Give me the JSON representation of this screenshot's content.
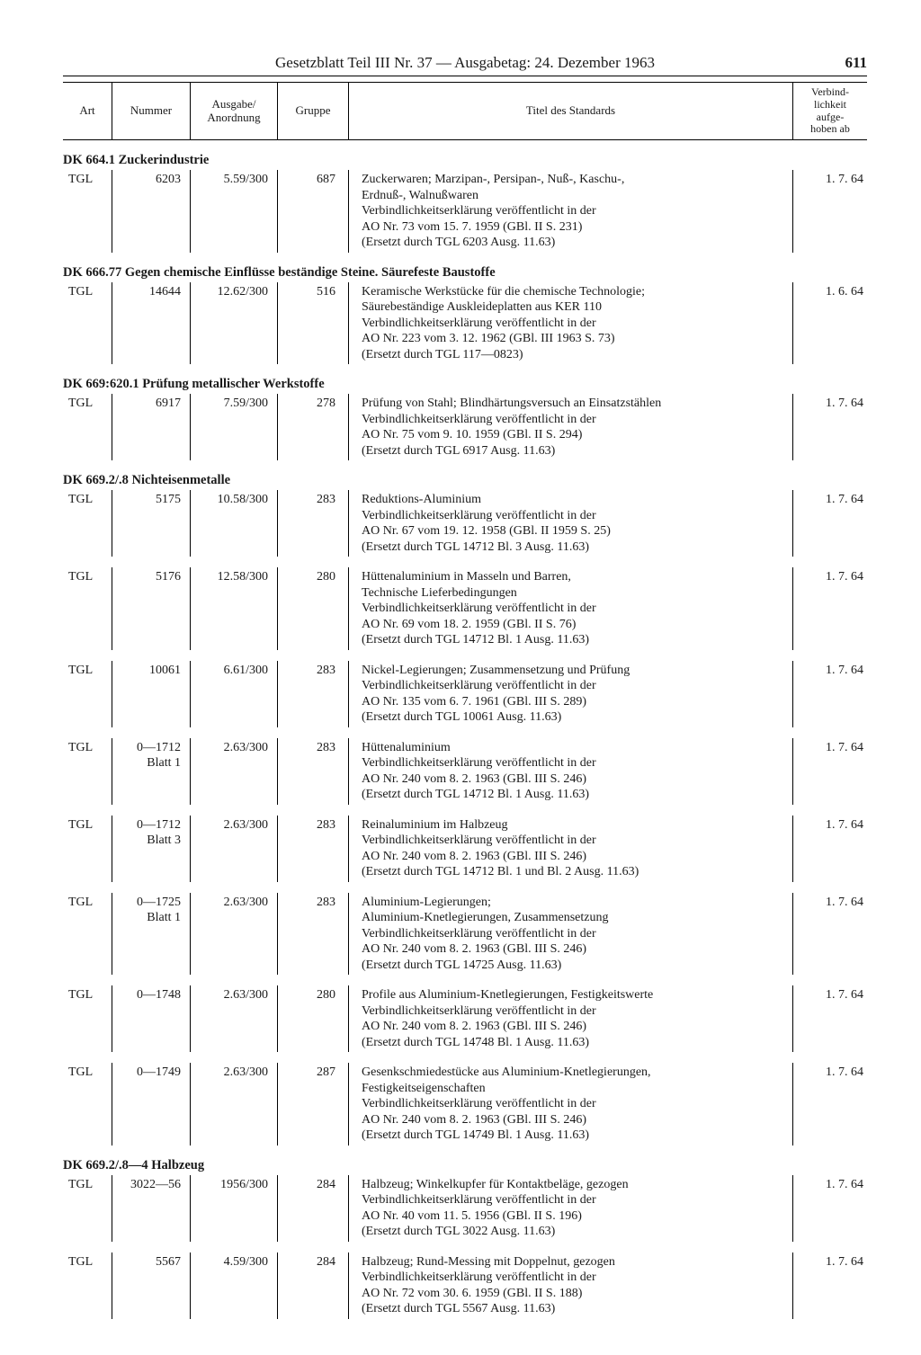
{
  "page": {
    "header_title": "Gesetzblatt Teil III Nr. 37 — Ausgabetag: 24. Dezember 1963",
    "page_number": "611"
  },
  "columns": {
    "art": "Art",
    "nummer": "Nummer",
    "ausgabe": "Ausgabe/\nAnordnung",
    "gruppe": "Gruppe",
    "titel": "Titel des Standards",
    "verbind": "Verbind-\nlichkeit\naufge-\nhoben ab"
  },
  "sections": [
    {
      "heading": "DK 664.1 Zuckerindustrie",
      "rows": [
        {
          "art": "TGL",
          "nummer": "6203",
          "ausgabe": "5.59/300",
          "gruppe": "687",
          "titel": [
            "Zuckerwaren; Marzipan-, Persipan-, Nuß-, Kaschu-,",
            "Erdnuß-, Walnußwaren",
            "Verbindlichkeitserklärung veröffentlicht in der",
            "AO Nr. 73 vom 15. 7. 1959 (GBl. II S. 231)",
            "(Ersetzt durch TGL 6203 Ausg. 11.63)"
          ],
          "verb": "1. 7. 64"
        }
      ]
    },
    {
      "heading": "DK 666.77 Gegen chemische Einflüsse beständige Steine. Säurefeste Baustoffe",
      "rows": [
        {
          "art": "TGL",
          "nummer": "14644",
          "ausgabe": "12.62/300",
          "gruppe": "516",
          "titel": [
            "Keramische Werkstücke für die chemische Technologie;",
            "Säurebeständige Auskleideplatten aus KER 110",
            "Verbindlichkeitserklärung veröffentlicht in der",
            "AO Nr. 223 vom 3. 12. 1962 (GBl. III 1963 S. 73)",
            "(Ersetzt durch TGL 117—0823)"
          ],
          "verb": "1. 6. 64"
        }
      ]
    },
    {
      "heading": "DK 669:620.1 Prüfung metallischer Werkstoffe",
      "rows": [
        {
          "art": "TGL",
          "nummer": "6917",
          "ausgabe": "7.59/300",
          "gruppe": "278",
          "titel": [
            "Prüfung von Stahl; Blindhärtungsversuch an Einsatzstählen",
            "Verbindlichkeitserklärung veröffentlicht in der",
            "AO Nr. 75 vom 9. 10. 1959 (GBl. II S. 294)",
            "(Ersetzt durch TGL 6917 Ausg. 11.63)"
          ],
          "verb": "1. 7. 64"
        }
      ]
    },
    {
      "heading": "DK 669.2/.8 Nichteisenmetalle",
      "rows": [
        {
          "art": "TGL",
          "nummer": "5175",
          "ausgabe": "10.58/300",
          "gruppe": "283",
          "titel": [
            "Reduktions-Aluminium",
            "Verbindlichkeitserklärung veröffentlicht in der",
            "AO Nr. 67 vom 19. 12. 1958 (GBl. II 1959 S. 25)",
            "(Ersetzt durch TGL 14712 Bl. 3 Ausg. 11.63)"
          ],
          "verb": "1. 7. 64"
        },
        {
          "art": "TGL",
          "nummer": "5176",
          "ausgabe": "12.58/300",
          "gruppe": "280",
          "titel": [
            "Hüttenaluminium in Masseln und Barren,",
            "Technische Lieferbedingungen",
            "Verbindlichkeitserklärung veröffentlicht in der",
            "AO Nr. 69 vom 18. 2. 1959 (GBl. II S. 76)",
            "(Ersetzt durch TGL 14712 Bl. 1 Ausg. 11.63)"
          ],
          "verb": "1. 7. 64"
        },
        {
          "art": "TGL",
          "nummer": "10061",
          "ausgabe": "6.61/300",
          "gruppe": "283",
          "titel": [
            "Nickel-Legierungen; Zusammensetzung und Prüfung",
            "Verbindlichkeitserklärung veröffentlicht in der",
            "AO Nr. 135 vom 6. 7. 1961 (GBl. III S. 289)",
            "(Ersetzt durch TGL 10061 Ausg. 11.63)"
          ],
          "verb": "1. 7. 64"
        },
        {
          "art": "TGL",
          "nummer": "0—1712\nBlatt 1",
          "ausgabe": "2.63/300",
          "gruppe": "283",
          "titel": [
            "Hüttenaluminium",
            "Verbindlichkeitserklärung veröffentlicht in der",
            "AO Nr. 240 vom 8. 2. 1963 (GBl. III S. 246)",
            "(Ersetzt durch TGL 14712 Bl. 1 Ausg. 11.63)"
          ],
          "verb": "1. 7. 64"
        },
        {
          "art": "TGL",
          "nummer": "0—1712\nBlatt 3",
          "ausgabe": "2.63/300",
          "gruppe": "283",
          "titel": [
            "Reinaluminium im Halbzeug",
            "Verbindlichkeitserklärung veröffentlicht in der",
            "AO Nr. 240 vom 8. 2. 1963 (GBl. III S. 246)",
            "(Ersetzt durch TGL 14712 Bl. 1 und Bl. 2 Ausg. 11.63)"
          ],
          "verb": "1. 7. 64"
        },
        {
          "art": "TGL",
          "nummer": "0—1725\nBlatt 1",
          "ausgabe": "2.63/300",
          "gruppe": "283",
          "titel": [
            "Aluminium-Legierungen;",
            "Aluminium-Knetlegierungen, Zusammensetzung",
            "Verbindlichkeitserklärung veröffentlicht in der",
            "AO Nr. 240 vom 8. 2. 1963 (GBl. III S. 246)",
            "(Ersetzt durch TGL 14725 Ausg. 11.63)"
          ],
          "verb": "1. 7. 64"
        },
        {
          "art": "TGL",
          "nummer": "0—1748",
          "ausgabe": "2.63/300",
          "gruppe": "280",
          "titel": [
            "Profile aus Aluminium-Knetlegierungen, Festigkeitswerte",
            "Verbindlichkeitserklärung veröffentlicht in der",
            "AO Nr. 240 vom 8. 2. 1963 (GBl. III S. 246)",
            "(Ersetzt durch TGL 14748 Bl. 1 Ausg. 11.63)"
          ],
          "verb": "1. 7. 64"
        },
        {
          "art": "TGL",
          "nummer": "0—1749",
          "ausgabe": "2.63/300",
          "gruppe": "287",
          "titel": [
            "Gesenkschmiedestücke aus Aluminium-Knetlegierungen,",
            "Festigkeitseigenschaften",
            "Verbindlichkeitserklärung veröffentlicht in der",
            "AO Nr. 240 vom 8. 2. 1963 (GBl. III S. 246)",
            "(Ersetzt durch TGL 14749 Bl. 1 Ausg. 11.63)"
          ],
          "verb": "1. 7. 64"
        }
      ]
    },
    {
      "heading": "DK 669.2/.8—4 Halbzeug",
      "rows": [
        {
          "art": "TGL",
          "nummer": "3022—56",
          "ausgabe": "1956/300",
          "gruppe": "284",
          "titel": [
            "Halbzeug; Winkelkupfer für Kontaktbeläge, gezogen",
            "Verbindlichkeitserklärung veröffentlicht in der",
            "AO Nr. 40 vom 11. 5. 1956 (GBl. II S. 196)",
            "(Ersetzt durch TGL 3022 Ausg. 11.63)"
          ],
          "verb": "1. 7. 64"
        },
        {
          "art": "TGL",
          "nummer": "5567",
          "ausgabe": "4.59/300",
          "gruppe": "284",
          "titel": [
            "Halbzeug; Rund-Messing mit Doppelnut, gezogen",
            "Verbindlichkeitserklärung veröffentlicht in der",
            "AO Nr. 72 vom 30. 6. 1959 (GBl. II S. 188)",
            "(Ersetzt durch TGL 5567 Ausg. 11.63)"
          ],
          "verb": "1. 7. 64"
        }
      ]
    }
  ]
}
